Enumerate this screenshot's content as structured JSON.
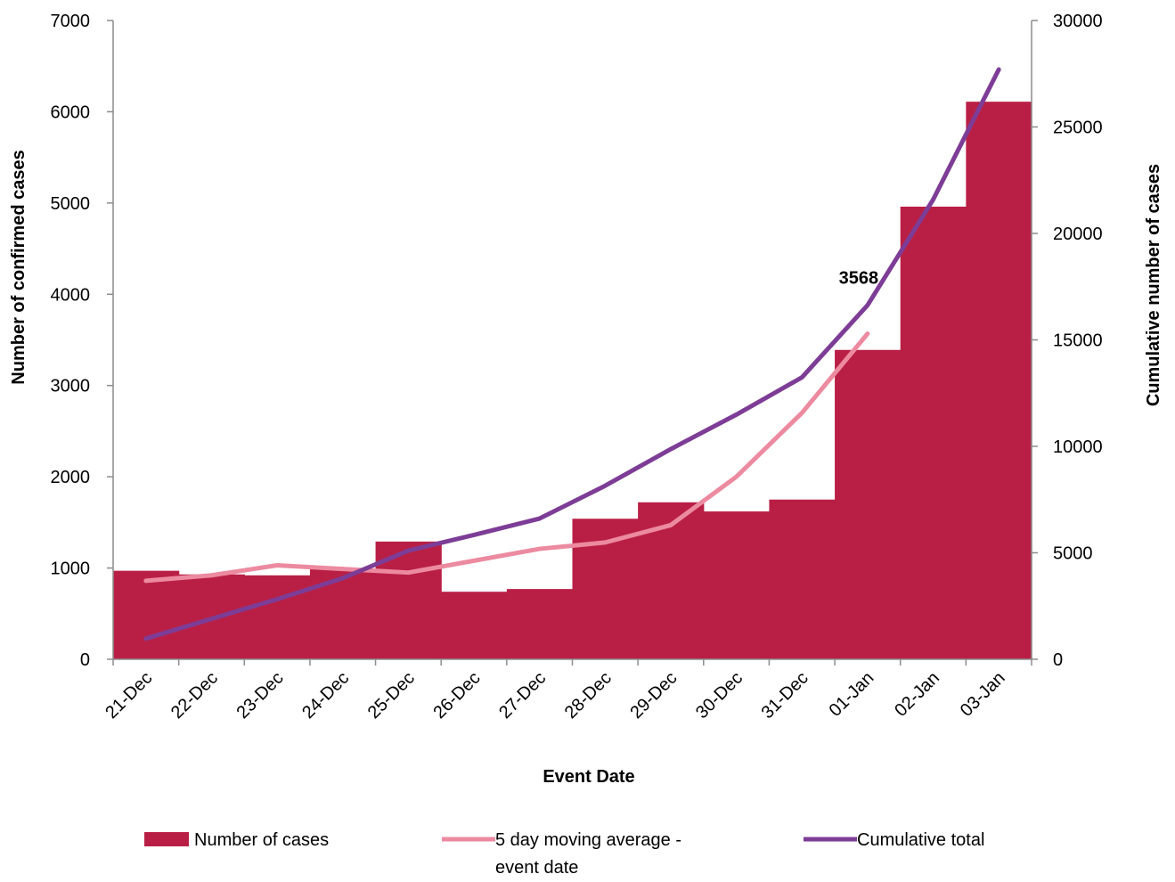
{
  "chart_data": {
    "type": "bar",
    "categories": [
      "21-Dec",
      "22-Dec",
      "23-Dec",
      "24-Dec",
      "25-Dec",
      "26-Dec",
      "27-Dec",
      "28-Dec",
      "29-Dec",
      "30-Dec",
      "31-Dec",
      "01-Jan",
      "02-Jan",
      "03-Jan"
    ],
    "xlabel": "Event Date",
    "ylabel": "Number of confirmed cases",
    "y2label": "Cumulative number of cases",
    "ylim": [
      0,
      7000
    ],
    "y2lim": [
      0,
      30000
    ],
    "yticks": [
      0,
      1000,
      2000,
      3000,
      4000,
      5000,
      6000,
      7000
    ],
    "y2ticks": [
      0,
      5000,
      10000,
      15000,
      20000,
      25000,
      30000
    ],
    "series": [
      {
        "name": "Number of cases",
        "type": "bar",
        "axis": "left",
        "color": "#b91f45",
        "values": [
          970,
          930,
          920,
          990,
          1290,
          740,
          770,
          1540,
          1720,
          1620,
          1750,
          3390,
          4960,
          6110
        ]
      },
      {
        "name": "5 day moving average - event date",
        "legend_lines": [
          "5 day moving average -",
          "event date"
        ],
        "type": "line",
        "axis": "left",
        "color": "#ec8aa0",
        "values": [
          860,
          920,
          1030,
          990,
          950,
          1080,
          1210,
          1280,
          1470,
          2000,
          2700,
          3568,
          null,
          null
        ]
      },
      {
        "name": "Cumulative total",
        "type": "line",
        "axis": "right",
        "color": "#7d3d96",
        "values": [
          970,
          1900,
          2820,
          3810,
          5100,
          5840,
          6610,
          8150,
          9870,
          11490,
          13240,
          16630,
          21590,
          27700
        ]
      }
    ],
    "annotations": [
      {
        "text": "3568",
        "category": "01-Jan",
        "series": "5 day moving average - event date"
      }
    ],
    "legend_position": "bottom"
  }
}
